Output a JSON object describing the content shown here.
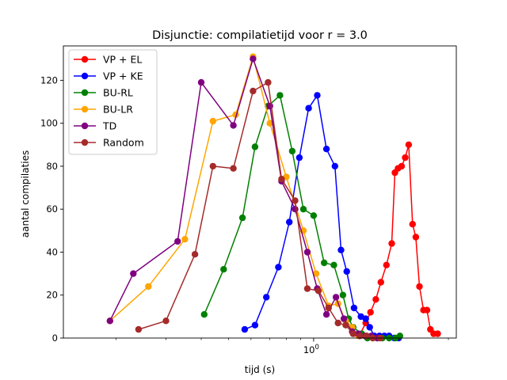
{
  "chart_data": {
    "type": "line",
    "title": "Disjunctie: compilatietijd voor r = 3.0",
    "xlabel": "tijd (s)",
    "ylabel": "aantal compilaties",
    "xscale": "log",
    "xlim": [
      0.13,
      3.2
    ],
    "ylim": [
      0,
      136
    ],
    "yticks": [
      0,
      20,
      40,
      60,
      80,
      100,
      120
    ],
    "xticks_major": [
      {
        "value": 1.0,
        "label": "10^0"
      }
    ],
    "xticks_minor": [
      0.2,
      0.3,
      0.4,
      0.5,
      0.6,
      0.7,
      0.8,
      0.9,
      2.0,
      3.0
    ],
    "grid": false,
    "legend_position": "top-left",
    "series": [
      {
        "name": "VP + EL",
        "color": "#ff0000",
        "x": [
          1.45,
          1.53,
          1.59,
          1.66,
          1.73,
          1.81,
          1.89,
          1.94,
          1.99,
          2.05,
          2.11,
          2.17,
          2.24,
          2.3,
          2.37,
          2.45,
          2.52,
          2.59,
          2.66,
          2.75
        ],
        "y": [
          1,
          7,
          12,
          18,
          26,
          34,
          44,
          77,
          79,
          80,
          84,
          90,
          53,
          47,
          24,
          13,
          13,
          4,
          2,
          2
        ]
      },
      {
        "name": "VP + KE",
        "color": "#0000ff",
        "x": [
          0.57,
          0.62,
          0.68,
          0.75,
          0.82,
          0.89,
          0.96,
          1.03,
          1.11,
          1.19,
          1.25,
          1.31,
          1.39,
          1.47,
          1.53,
          1.58,
          1.64,
          1.71,
          1.78,
          1.85,
          1.93,
          2.0
        ],
        "y": [
          4,
          6,
          19,
          33,
          54,
          84,
          107,
          113,
          88,
          80,
          41,
          31,
          14,
          10,
          9,
          5,
          1,
          1,
          1,
          1,
          0,
          0
        ]
      },
      {
        "name": "BU-RL",
        "color": "#008000",
        "x": [
          0.41,
          0.48,
          0.56,
          0.62,
          0.69,
          0.76,
          0.84,
          0.92,
          1.0,
          1.09,
          1.18,
          1.27,
          1.33,
          1.38,
          1.48,
          1.55,
          1.62,
          1.68,
          1.75,
          1.85,
          1.95,
          2.02
        ],
        "y": [
          11,
          32,
          56,
          89,
          108,
          113,
          87,
          60,
          57,
          35,
          34,
          20,
          9,
          5,
          2,
          0,
          0,
          0,
          0,
          0,
          0,
          1
        ]
      },
      {
        "name": "BU-LR",
        "color": "#ffa500",
        "x": [
          0.19,
          0.26,
          0.35,
          0.44,
          0.53,
          0.61,
          0.7,
          0.8,
          0.92,
          1.02,
          1.13,
          1.22,
          1.3,
          1.37,
          1.44
        ],
        "y": [
          8,
          24,
          46,
          101,
          104,
          131,
          100,
          75,
          50,
          30,
          15,
          16,
          8,
          5,
          1
        ]
      },
      {
        "name": "TD",
        "color": "#800080",
        "x": [
          0.19,
          0.23,
          0.33,
          0.4,
          0.52,
          0.61,
          0.7,
          0.77,
          0.86,
          0.95,
          1.03,
          1.11,
          1.2,
          1.28,
          1.37,
          1.44,
          1.52,
          1.6,
          1.68
        ],
        "y": [
          8,
          30,
          45,
          119,
          99,
          130,
          108,
          73,
          60,
          40,
          23,
          11,
          19,
          9,
          3,
          2,
          1,
          1,
          0
        ]
      },
      {
        "name": "Random",
        "color": "#a52a2a",
        "x": [
          0.24,
          0.3,
          0.38,
          0.44,
          0.52,
          0.61,
          0.69,
          0.77,
          0.86,
          0.95,
          1.04,
          1.13,
          1.22,
          1.3,
          1.38,
          1.46,
          1.54,
          1.62,
          1.72
        ],
        "y": [
          4,
          8,
          39,
          80,
          79,
          115,
          119,
          74,
          64,
          23,
          22,
          14,
          7,
          6,
          2,
          1,
          1,
          0,
          0
        ]
      }
    ]
  }
}
